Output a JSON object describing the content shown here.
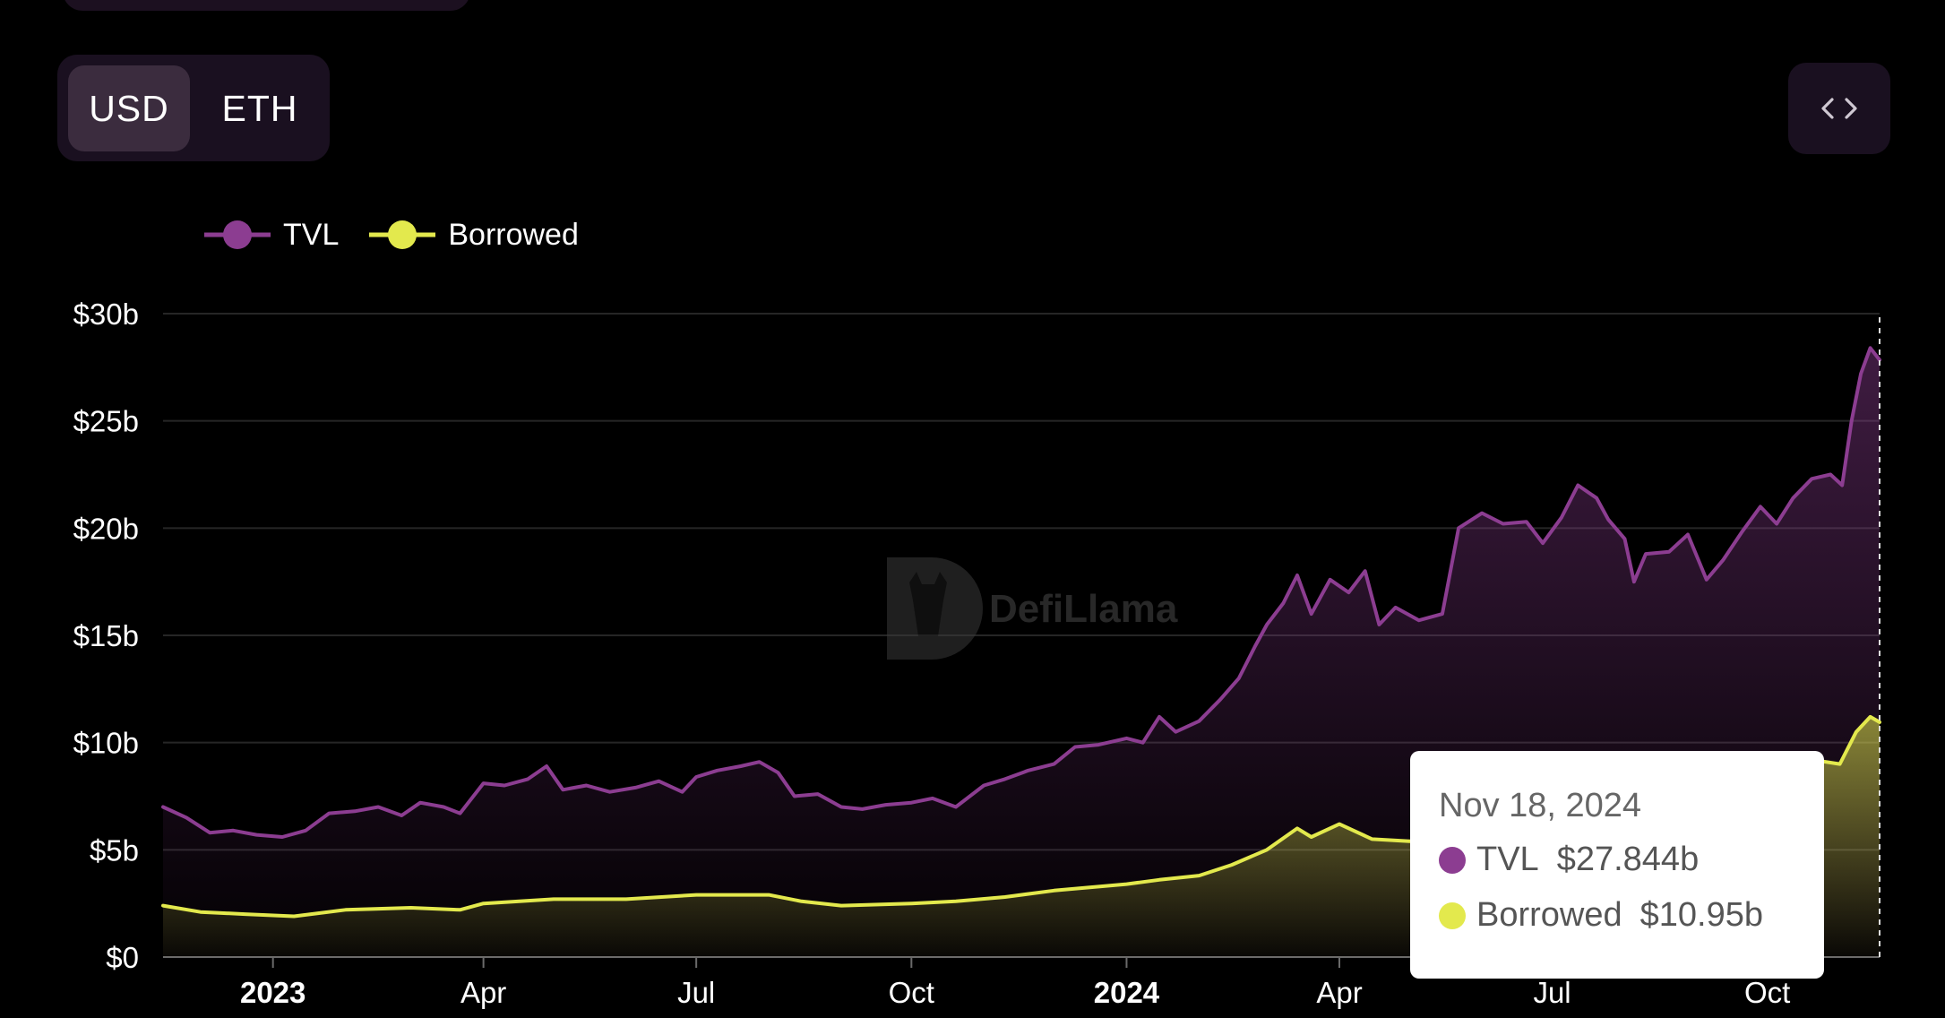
{
  "currency_toggle": {
    "usd_label": "USD",
    "eth_label": "ETH",
    "selected": "USD"
  },
  "embed_button": {
    "icon": "code-icon"
  },
  "watermark": {
    "text": "DefiLlama",
    "icon": "llama-logo-icon"
  },
  "colors": {
    "tvl": "#8c3d91",
    "borrowed": "#e3e94d",
    "background": "#000000",
    "grid": "#2a2a2a"
  },
  "legend": [
    {
      "label": "TVL",
      "color": "#8c3d91"
    },
    {
      "label": "Borrowed",
      "color": "#e3e94d"
    }
  ],
  "tooltip": {
    "date": "Nov 18, 2024",
    "rows": [
      {
        "label": "TVL",
        "value": "$27.844b",
        "color": "#8c3d91"
      },
      {
        "label": "Borrowed",
        "value": "$10.95b",
        "color": "#e3e94d"
      }
    ]
  },
  "chart_data": {
    "type": "area",
    "x_range": [
      "2022-11-15",
      "2024-11-18"
    ],
    "y_range": [
      0,
      30
    ],
    "y_unit": "USD billions",
    "y_ticks": [
      {
        "value": 0,
        "label": "$0"
      },
      {
        "value": 5,
        "label": "$5b"
      },
      {
        "value": 10,
        "label": "$10b"
      },
      {
        "value": 15,
        "label": "$15b"
      },
      {
        "value": 20,
        "label": "$20b"
      },
      {
        "value": 25,
        "label": "$25b"
      },
      {
        "value": 30,
        "label": "$30b"
      }
    ],
    "x_ticks": [
      {
        "date": "2023-01-01",
        "label": "2023",
        "bold": true
      },
      {
        "date": "2023-04-01",
        "label": "Apr",
        "bold": false
      },
      {
        "date": "2023-07-01",
        "label": "Jul",
        "bold": false
      },
      {
        "date": "2023-10-01",
        "label": "Oct",
        "bold": false
      },
      {
        "date": "2024-01-01",
        "label": "2024",
        "bold": true
      },
      {
        "date": "2024-04-01",
        "label": "Apr",
        "bold": false
      },
      {
        "date": "2024-07-01",
        "label": "Jul",
        "bold": false
      },
      {
        "date": "2024-10-01",
        "label": "Oct",
        "bold": false
      }
    ],
    "grid": true,
    "legend_position": "top-left",
    "series": [
      {
        "name": "TVL",
        "color": "#8c3d91",
        "points": [
          [
            "2022-11-15",
            7.0
          ],
          [
            "2022-11-25",
            6.5
          ],
          [
            "2022-12-05",
            5.8
          ],
          [
            "2022-12-15",
            5.9
          ],
          [
            "2022-12-25",
            5.7
          ],
          [
            "2023-01-05",
            5.6
          ],
          [
            "2023-01-15",
            5.9
          ],
          [
            "2023-01-25",
            6.7
          ],
          [
            "2023-02-05",
            6.8
          ],
          [
            "2023-02-15",
            7.0
          ],
          [
            "2023-02-25",
            6.6
          ],
          [
            "2023-03-05",
            7.2
          ],
          [
            "2023-03-15",
            7.0
          ],
          [
            "2023-03-22",
            6.7
          ],
          [
            "2023-04-01",
            8.1
          ],
          [
            "2023-04-10",
            8.0
          ],
          [
            "2023-04-20",
            8.3
          ],
          [
            "2023-04-28",
            8.9
          ],
          [
            "2023-05-05",
            7.8
          ],
          [
            "2023-05-15",
            8.0
          ],
          [
            "2023-05-25",
            7.7
          ],
          [
            "2023-06-05",
            7.9
          ],
          [
            "2023-06-15",
            8.2
          ],
          [
            "2023-06-25",
            7.7
          ],
          [
            "2023-07-01",
            8.4
          ],
          [
            "2023-07-10",
            8.7
          ],
          [
            "2023-07-20",
            8.9
          ],
          [
            "2023-07-28",
            9.1
          ],
          [
            "2023-08-05",
            8.6
          ],
          [
            "2023-08-12",
            7.5
          ],
          [
            "2023-08-22",
            7.6
          ],
          [
            "2023-09-01",
            7.0
          ],
          [
            "2023-09-10",
            6.9
          ],
          [
            "2023-09-20",
            7.1
          ],
          [
            "2023-10-01",
            7.2
          ],
          [
            "2023-10-10",
            7.4
          ],
          [
            "2023-10-20",
            7.0
          ],
          [
            "2023-11-01",
            8.0
          ],
          [
            "2023-11-10",
            8.3
          ],
          [
            "2023-11-20",
            8.7
          ],
          [
            "2023-12-01",
            9.0
          ],
          [
            "2023-12-10",
            9.8
          ],
          [
            "2023-12-20",
            9.9
          ],
          [
            "2024-01-01",
            10.2
          ],
          [
            "2024-01-08",
            10.0
          ],
          [
            "2024-01-15",
            11.2
          ],
          [
            "2024-01-22",
            10.5
          ],
          [
            "2024-02-01",
            11.0
          ],
          [
            "2024-02-10",
            12.0
          ],
          [
            "2024-02-18",
            13.0
          ],
          [
            "2024-02-25",
            14.5
          ],
          [
            "2024-03-01",
            15.5
          ],
          [
            "2024-03-08",
            16.5
          ],
          [
            "2024-03-14",
            17.8
          ],
          [
            "2024-03-20",
            16.0
          ],
          [
            "2024-03-28",
            17.6
          ],
          [
            "2024-04-05",
            17.0
          ],
          [
            "2024-04-12",
            18.0
          ],
          [
            "2024-04-18",
            15.5
          ],
          [
            "2024-04-25",
            16.3
          ],
          [
            "2024-05-05",
            15.7
          ],
          [
            "2024-05-15",
            16.0
          ],
          [
            "2024-05-22",
            20.0
          ],
          [
            "2024-06-01",
            20.7
          ],
          [
            "2024-06-10",
            20.2
          ],
          [
            "2024-06-20",
            20.3
          ],
          [
            "2024-06-27",
            19.3
          ],
          [
            "2024-07-05",
            20.5
          ],
          [
            "2024-07-12",
            22.0
          ],
          [
            "2024-07-20",
            21.4
          ],
          [
            "2024-07-25",
            20.4
          ],
          [
            "2024-08-01",
            19.5
          ],
          [
            "2024-08-05",
            17.5
          ],
          [
            "2024-08-10",
            18.8
          ],
          [
            "2024-08-20",
            18.9
          ],
          [
            "2024-08-28",
            19.7
          ],
          [
            "2024-09-05",
            17.6
          ],
          [
            "2024-09-12",
            18.5
          ],
          [
            "2024-09-20",
            19.8
          ],
          [
            "2024-09-28",
            21.0
          ],
          [
            "2024-10-05",
            20.2
          ],
          [
            "2024-10-12",
            21.4
          ],
          [
            "2024-10-20",
            22.3
          ],
          [
            "2024-10-28",
            22.5
          ],
          [
            "2024-11-02",
            22.0
          ],
          [
            "2024-11-06",
            25.0
          ],
          [
            "2024-11-10",
            27.2
          ],
          [
            "2024-11-14",
            28.4
          ],
          [
            "2024-11-18",
            27.844
          ]
        ]
      },
      {
        "name": "Borrowed",
        "color": "#e3e94d",
        "points": [
          [
            "2022-11-15",
            2.4
          ],
          [
            "2022-12-01",
            2.1
          ],
          [
            "2022-12-20",
            2.0
          ],
          [
            "2023-01-10",
            1.9
          ],
          [
            "2023-02-01",
            2.2
          ],
          [
            "2023-03-01",
            2.3
          ],
          [
            "2023-03-22",
            2.2
          ],
          [
            "2023-04-01",
            2.5
          ],
          [
            "2023-05-01",
            2.7
          ],
          [
            "2023-06-01",
            2.7
          ],
          [
            "2023-07-01",
            2.9
          ],
          [
            "2023-08-01",
            2.9
          ],
          [
            "2023-08-15",
            2.6
          ],
          [
            "2023-09-01",
            2.4
          ],
          [
            "2023-10-01",
            2.5
          ],
          [
            "2023-10-20",
            2.6
          ],
          [
            "2023-11-10",
            2.8
          ],
          [
            "2023-12-01",
            3.1
          ],
          [
            "2024-01-01",
            3.4
          ],
          [
            "2024-01-15",
            3.6
          ],
          [
            "2024-02-01",
            3.8
          ],
          [
            "2024-02-15",
            4.3
          ],
          [
            "2024-03-01",
            5.0
          ],
          [
            "2024-03-14",
            6.0
          ],
          [
            "2024-03-20",
            5.6
          ],
          [
            "2024-04-01",
            6.2
          ],
          [
            "2024-04-15",
            5.5
          ],
          [
            "2024-05-01",
            5.4
          ],
          [
            "2024-06-01",
            6.0
          ],
          [
            "2024-07-01",
            6.5
          ],
          [
            "2024-08-01",
            6.8
          ],
          [
            "2024-09-01",
            7.5
          ],
          [
            "2024-10-01",
            8.5
          ],
          [
            "2024-10-20",
            9.2
          ],
          [
            "2024-11-01",
            9.0
          ],
          [
            "2024-11-08",
            10.5
          ],
          [
            "2024-11-14",
            11.2
          ],
          [
            "2024-11-18",
            10.95
          ]
        ]
      }
    ]
  }
}
